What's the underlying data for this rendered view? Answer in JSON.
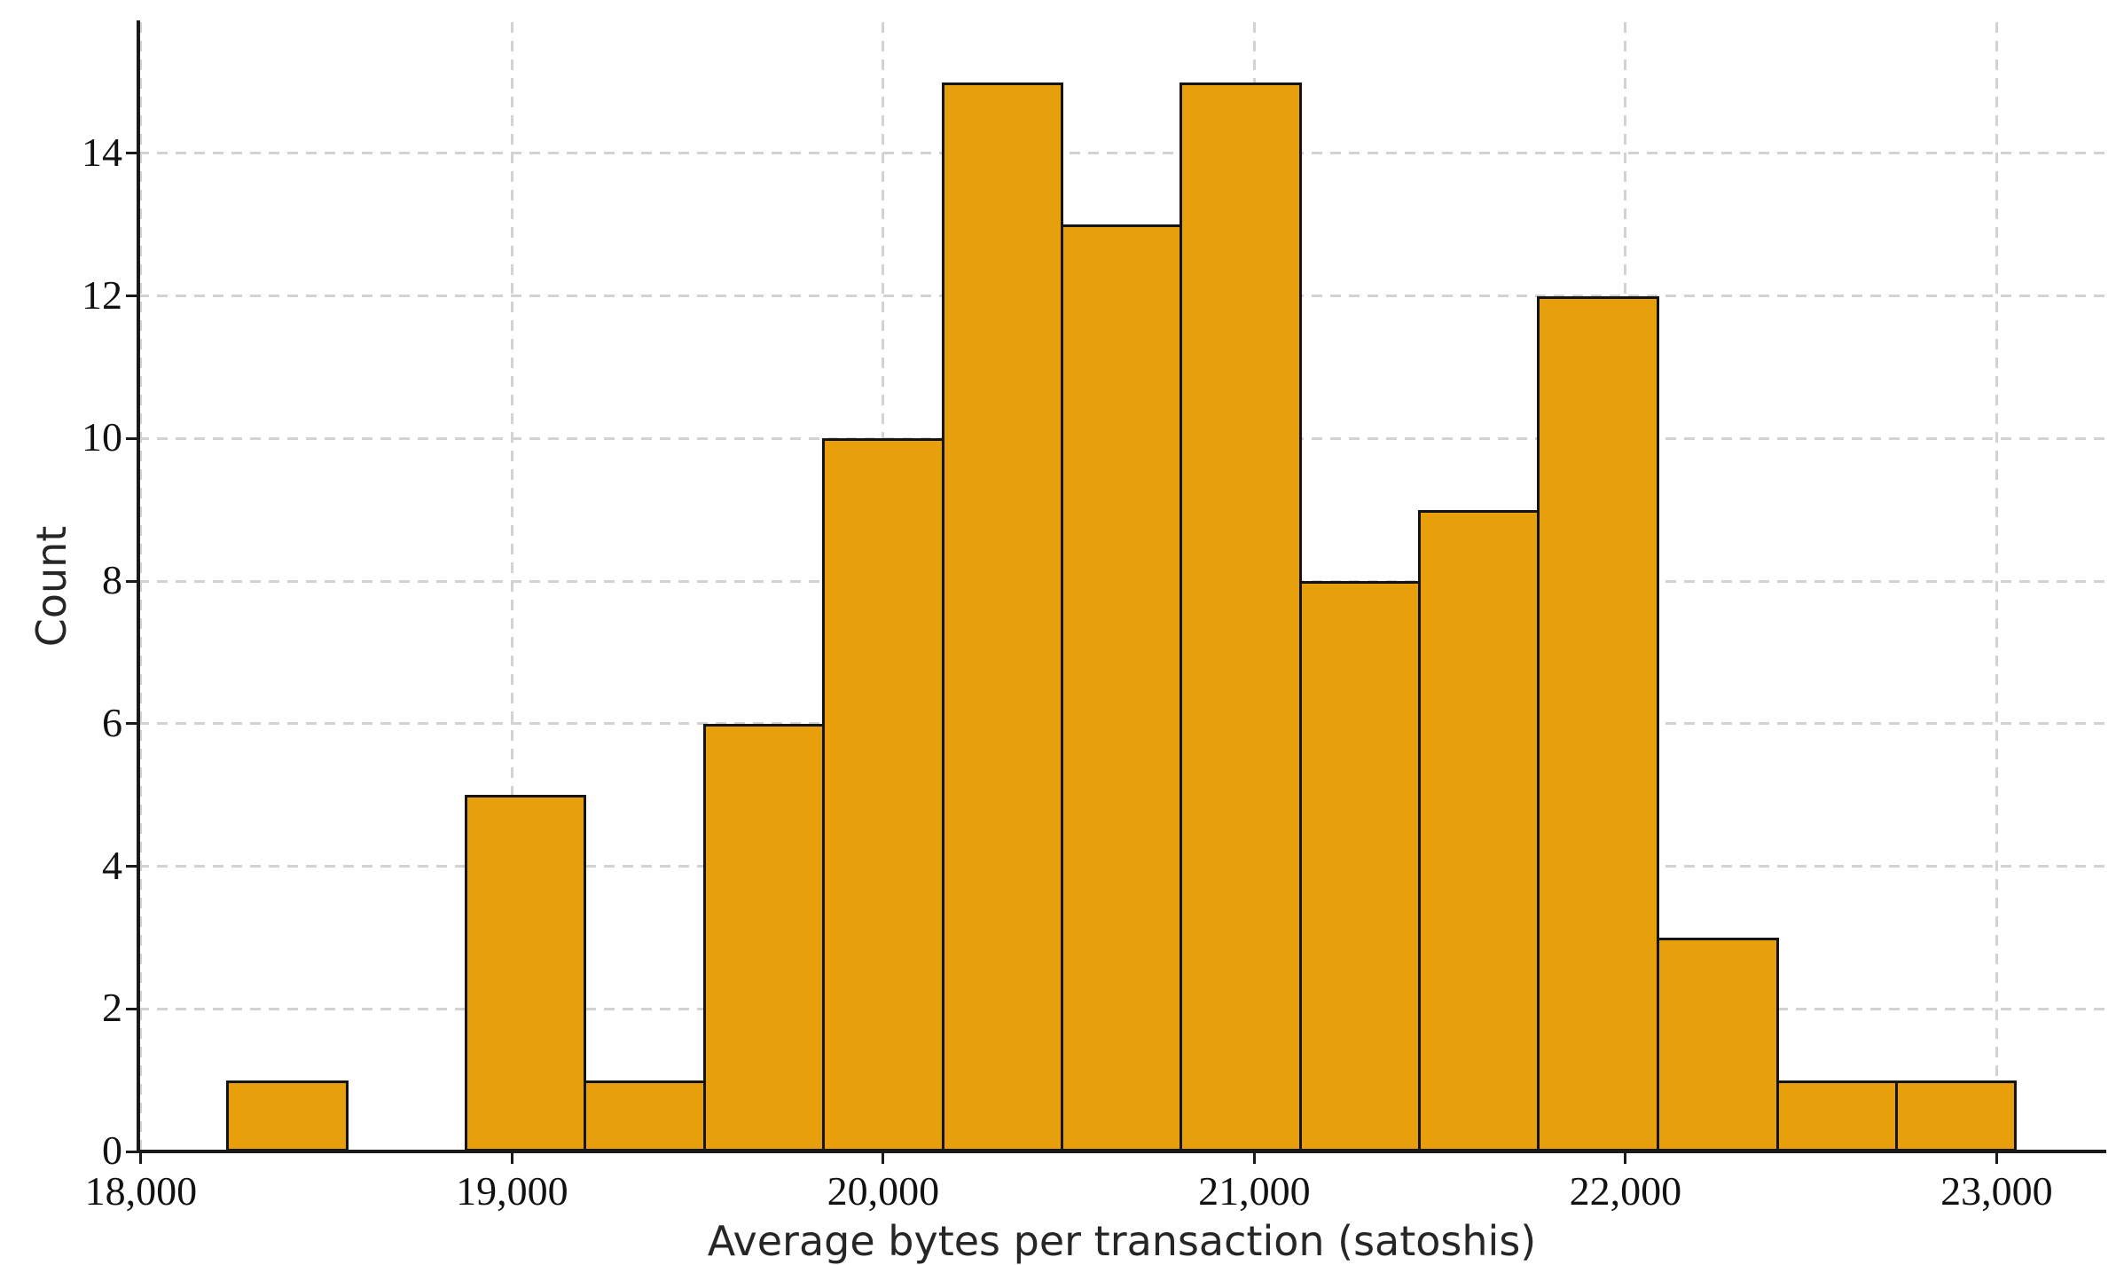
{
  "chart_data": {
    "type": "bar",
    "subtype": "histogram",
    "title": "",
    "xlabel": "Average bytes per transaction (satoshis)",
    "ylabel": "Count",
    "bin_edges": [
      18234,
      18555,
      18876,
      19197,
      19518,
      19840,
      20161,
      20482,
      20803,
      21124,
      21445,
      21766,
      22087,
      22409,
      22730,
      23051
    ],
    "counts": [
      1,
      0,
      5,
      1,
      6,
      10,
      15,
      13,
      15,
      8,
      9,
      12,
      3,
      1,
      1
    ],
    "total_count": 100,
    "xlim": [
      17993,
      23293
    ],
    "ylim": [
      0,
      15.84
    ],
    "x_ticks": [
      18000,
      19000,
      20000,
      21000,
      22000,
      23000
    ],
    "x_tick_labels": [
      "18,000",
      "19,000",
      "20,000",
      "21,000",
      "22,000",
      "23,000"
    ],
    "y_ticks": [
      0,
      2,
      4,
      6,
      8,
      10,
      12,
      14
    ],
    "y_tick_labels": [
      "0",
      "2",
      "4",
      "6",
      "8",
      "10",
      "12",
      "14"
    ],
    "grid": "both-dashed",
    "legend": null,
    "colors": {
      "bar_fill": "#E7A00B",
      "bar_edge": "#141414",
      "gridline": "#d2d2d2",
      "spine": "#1a1a1a",
      "tick_label": "#111111",
      "axis_label": "#262626",
      "background": "#ffffff"
    }
  }
}
